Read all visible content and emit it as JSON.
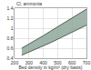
{
  "chart_data": {
    "type": "area",
    "xlabel": "Bed density in kg/m³ (dry basis)",
    "ylabel": "Cl, ammonia",
    "x": [
      250,
      300,
      350,
      400,
      450,
      500,
      550,
      600,
      650,
      700
    ],
    "series": [
      {
        "color": "#4f5f55",
        "values": [
          0.46,
          0.52,
          0.58,
          0.64,
          0.71,
          0.78,
          0.85,
          0.92,
          0.99,
          1.06
        ]
      },
      {
        "color": "#4f5f55",
        "values": [
          0.6,
          0.68,
          0.76,
          0.85,
          0.94,
          1.03,
          1.12,
          1.21,
          1.3,
          1.38
        ]
      }
    ],
    "fill_color": "#8fa89a",
    "xlim": [
      200,
      700
    ],
    "xticks": [
      200,
      300,
      400,
      500,
      600,
      700
    ],
    "ylim": [
      0.4,
      1.4
    ],
    "yticks": [
      0.4,
      0.6,
      0.8,
      1,
      1.2,
      1.4
    ],
    "grid": true
  }
}
